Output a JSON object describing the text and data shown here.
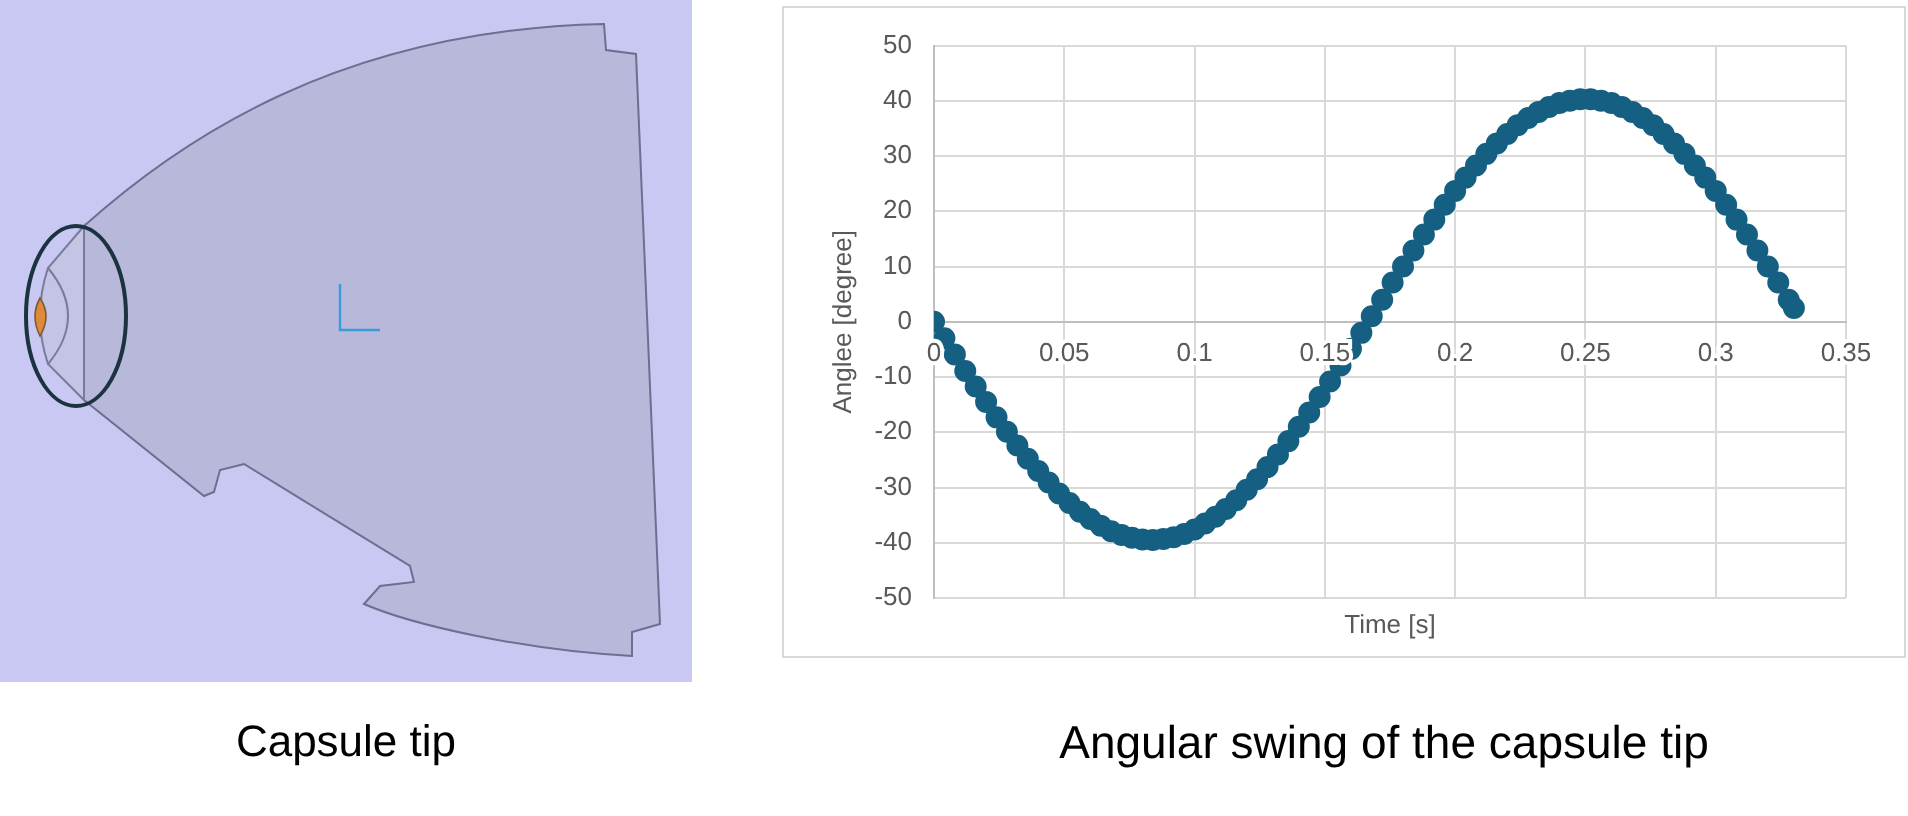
{
  "chart_data": {
    "type": "scatter",
    "title": "Angular swing of the capsule tip",
    "xlabel": "Time [s]",
    "ylabel": "Anglee [degree]",
    "annotations": [
      "Capsule tip"
    ],
    "x": [
      0,
      0.004,
      0.008,
      0.012,
      0.016,
      0.02,
      0.024,
      0.028,
      0.032,
      0.036,
      0.04,
      0.044,
      0.048,
      0.052,
      0.056,
      0.06,
      0.064,
      0.068,
      0.072,
      0.076,
      0.08,
      0.084,
      0.088,
      0.092,
      0.096,
      0.1,
      0.104,
      0.108,
      0.112,
      0.116,
      0.12,
      0.124,
      0.128,
      0.132,
      0.136,
      0.14,
      0.144,
      0.148,
      0.152,
      0.156,
      0.16,
      0.164,
      0.168,
      0.172,
      0.176,
      0.18,
      0.184,
      0.188,
      0.192,
      0.196,
      0.2,
      0.204,
      0.208,
      0.212,
      0.216,
      0.22,
      0.224,
      0.228,
      0.232,
      0.236,
      0.24,
      0.244,
      0.248,
      0.252,
      0.256,
      0.26,
      0.264,
      0.268,
      0.272,
      0.276,
      0.28,
      0.284,
      0.288,
      0.292,
      0.296,
      0.3,
      0.304,
      0.308,
      0.312,
      0.316,
      0.32,
      0.324,
      0.328,
      0.33
    ],
    "series": [
      {
        "color": "#156082",
        "values": [
          0,
          -3.0,
          -5.9,
          -8.9,
          -11.7,
          -14.5,
          -17.3,
          -19.9,
          -22.4,
          -24.8,
          -27.0,
          -29.1,
          -31.1,
          -32.8,
          -34.4,
          -35.7,
          -36.9,
          -37.9,
          -38.6,
          -39.1,
          -39.4,
          -39.5,
          -39.3,
          -39.0,
          -38.4,
          -37.6,
          -36.5,
          -35.3,
          -33.9,
          -32.3,
          -30.4,
          -28.5,
          -26.3,
          -24.0,
          -21.6,
          -19.0,
          -16.4,
          -13.6,
          -10.8,
          -7.9,
          -4.9,
          -2.0,
          1.0,
          4.0,
          7.1,
          10.0,
          12.9,
          15.8,
          18.5,
          21.2,
          23.7,
          26.1,
          28.3,
          30.4,
          32.3,
          34.0,
          35.6,
          36.9,
          38.0,
          38.9,
          39.6,
          40.0,
          40.3,
          40.3,
          40.0,
          39.6,
          38.9,
          38.0,
          36.9,
          35.6,
          34.0,
          32.3,
          30.4,
          28.3,
          26.1,
          23.7,
          21.2,
          18.5,
          15.8,
          12.9,
          10.0,
          7.1,
          4.0,
          2.5
        ]
      }
    ],
    "xlim": [
      0,
      0.35
    ],
    "xticks": [
      0,
      0.05,
      0.1,
      0.15,
      0.2,
      0.25,
      0.3,
      0.35
    ],
    "ylim": [
      -50,
      50
    ],
    "yticks": [
      -50,
      -40,
      -30,
      -20,
      -10,
      0,
      10,
      20,
      30,
      40,
      50
    ],
    "grid": true,
    "marker": "circle"
  }
}
